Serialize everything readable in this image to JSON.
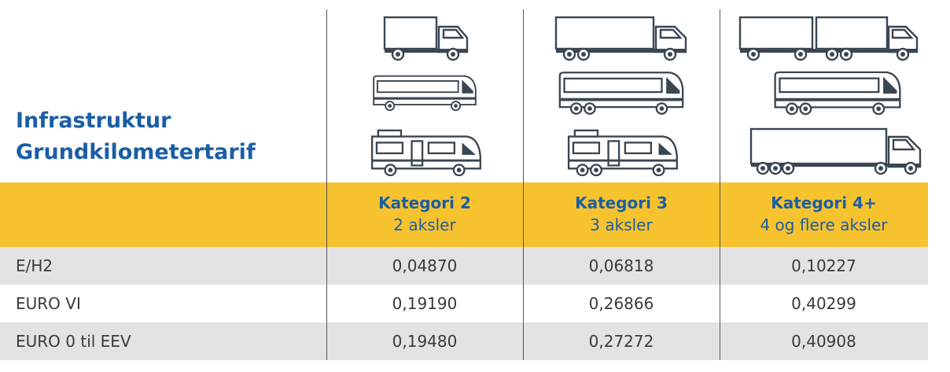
{
  "header": {
    "title": [
      "Infrastruktur",
      "Grundkilometertarif"
    ]
  },
  "table": {
    "columns": [
      {
        "name": "Kategori 2",
        "sub": "2 aksler"
      },
      {
        "name": "Kategori 3",
        "sub": "3 aksler"
      },
      {
        "name": "Kategori 4+",
        "sub": "4 og flere aksler"
      }
    ],
    "rows": [
      [
        "E/H2",
        "0,04870",
        "0,06818",
        "0,10227"
      ],
      [
        "EURO VI",
        "0,19190",
        "0,26866",
        "0,40299"
      ],
      [
        "EURO 0 til EEV",
        "0,19480",
        "0,27272",
        "0,40908"
      ]
    ]
  }
}
